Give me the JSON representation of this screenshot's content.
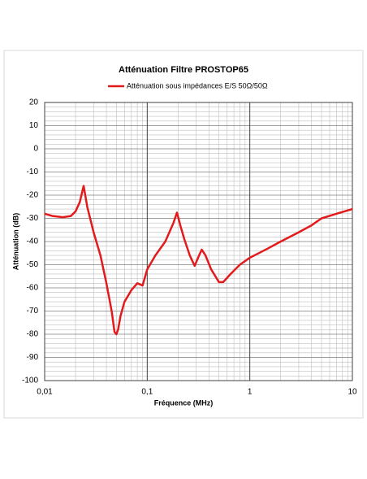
{
  "chart_data": {
    "type": "line",
    "title": "Atténuation  Filtre PROSTOP65",
    "xlabel": "Fréquence (MHz)",
    "ylabel": "Atténuation (dB)",
    "xscale": "log",
    "grid": true,
    "legend": "top",
    "xlim": [
      0.01,
      10
    ],
    "xticks": [
      {
        "value": 0.01,
        "label": "0,01"
      },
      {
        "value": 0.1,
        "label": "0,1"
      },
      1,
      10
    ],
    "ylim": [
      -100,
      20
    ],
    "yticks": [
      20,
      10,
      0,
      -10,
      -20,
      -30,
      -40,
      -50,
      -60,
      -70,
      -80,
      -90,
      -100
    ],
    "x": [
      0.01,
      0.012,
      0.015,
      0.018,
      0.02,
      0.022,
      0.024,
      0.026,
      0.03,
      0.035,
      0.04,
      0.045,
      0.048,
      0.05,
      0.052,
      0.055,
      0.06,
      0.07,
      0.08,
      0.09,
      0.1,
      0.12,
      0.15,
      0.18,
      0.195,
      0.21,
      0.23,
      0.26,
      0.29,
      0.32,
      0.34,
      0.37,
      0.42,
      0.5,
      0.55,
      0.65,
      0.8,
      1,
      1.5,
      2,
      3,
      4,
      5,
      7,
      10
    ],
    "series": [
      {
        "name": "Atténuation sous impédances E/S 50Ω/50Ω",
        "color": "#e31a1c",
        "values": [
          -28,
          -29,
          -29.5,
          -29,
          -27,
          -23,
          -16,
          -25,
          -36,
          -46,
          -58,
          -70,
          -79,
          -80,
          -78,
          -72,
          -66,
          -61,
          -58,
          -59,
          -52,
          -46,
          -40,
          -32,
          -27.5,
          -33,
          -39,
          -46,
          -50.5,
          -46,
          -43.5,
          -46,
          -52,
          -57.5,
          -57.5,
          -54,
          -50,
          -47,
          -43,
          -40,
          -36,
          -33,
          -30,
          -28,
          -26
        ]
      }
    ]
  }
}
